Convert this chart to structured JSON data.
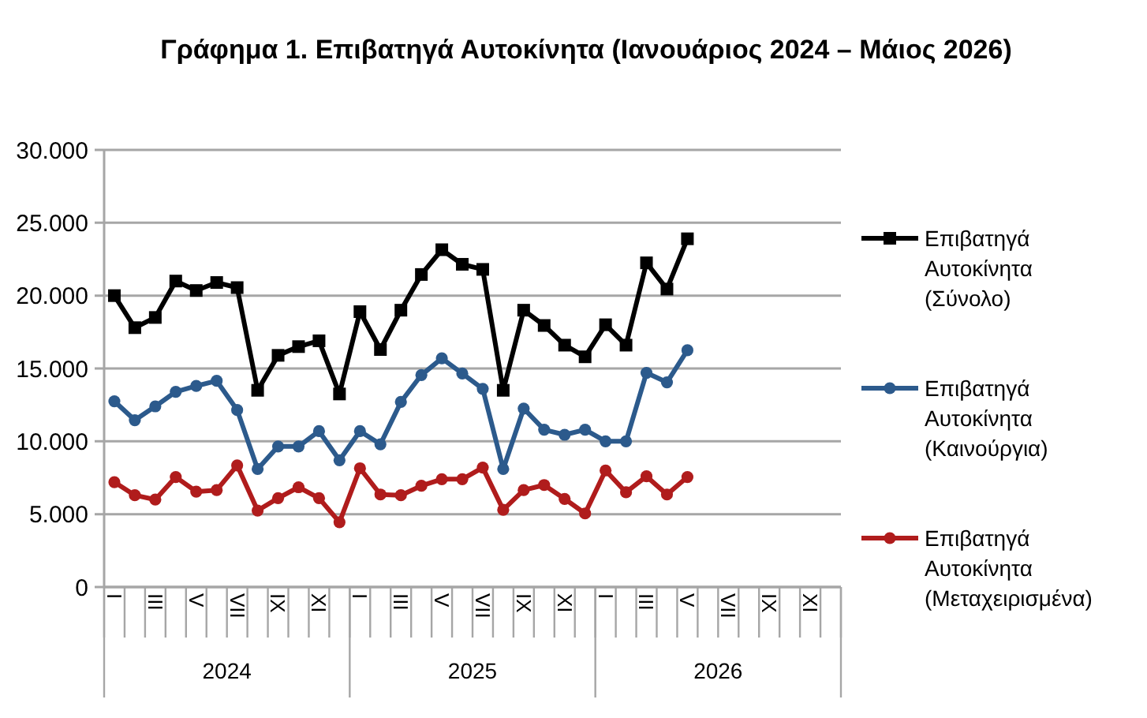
{
  "chart_data": {
    "type": "line",
    "title": "Γράφημα 1. Επιβατηγά Αυτοκίνητα (Ιανουάριος 2024 – Μάιος 2026)",
    "categories": [
      "I",
      null,
      "III",
      null,
      "V",
      null,
      "VII",
      null,
      "IX",
      null,
      "XI",
      null,
      "I",
      null,
      "III",
      null,
      "V",
      null,
      "VII",
      null,
      "IX",
      null,
      "XI",
      null,
      "I",
      null,
      "III",
      null,
      "V",
      null,
      "VII",
      null,
      "IX",
      null,
      "XI",
      null
    ],
    "annotations": [
      "2024",
      "2025",
      "2026"
    ],
    "series": [
      {
        "name": "Επιβατηγά Αυτοκίνητα (Σύνολο)",
        "color": "#000000",
        "marker": "square",
        "values": [
          20000,
          17800,
          18500,
          21000,
          20350,
          20900,
          20550,
          13500,
          15900,
          16500,
          16900,
          13250,
          18900,
          16300,
          19000,
          21450,
          23150,
          22150,
          21800,
          13500,
          19000,
          17950,
          16600,
          15800,
          18000,
          16600,
          22250,
          20450,
          23900,
          null,
          null,
          null,
          null,
          null,
          null,
          null
        ]
      },
      {
        "name": "Επιβατηγά Αυτοκίνητα (Καινούργια)",
        "color": "#2c5a8c",
        "marker": "circle",
        "values": [
          12750,
          11450,
          12400,
          13400,
          13800,
          14150,
          12150,
          8100,
          9650,
          9650,
          10700,
          8700,
          10700,
          9800,
          12700,
          14550,
          15700,
          14650,
          13600,
          8100,
          12250,
          10800,
          10450,
          10800,
          10000,
          10000,
          14700,
          14050,
          16250,
          null,
          null,
          null,
          null,
          null,
          null,
          null
        ]
      },
      {
        "name": "Επιβατηγά Αυτοκίνητα (Μεταχειρισμένα)",
        "color": "#b01c1c",
        "marker": "circle",
        "values": [
          7200,
          6300,
          6000,
          7550,
          6550,
          6650,
          8350,
          5250,
          6100,
          6850,
          6100,
          4450,
          8150,
          6350,
          6300,
          6950,
          7400,
          7400,
          8200,
          5300,
          6650,
          7000,
          6050,
          5050,
          8000,
          6500,
          7600,
          6350,
          7550,
          null,
          null,
          null,
          null,
          null,
          null,
          null
        ]
      }
    ],
    "ylim": [
      0,
      30000
    ],
    "yticks": [
      0,
      {
        "value": 5000,
        "label": "5.000"
      },
      {
        "value": 10000,
        "label": "10.000"
      },
      {
        "value": 15000,
        "label": "15.000"
      },
      {
        "value": 20000,
        "label": "20.000"
      },
      {
        "value": 25000,
        "label": "25.000"
      },
      {
        "value": 30000,
        "label": "30.000"
      }
    ],
    "grid": "y",
    "legend": "right",
    "line_style": "solid"
  }
}
